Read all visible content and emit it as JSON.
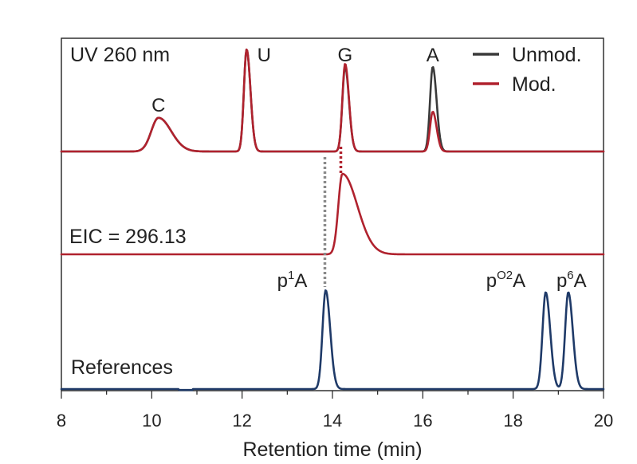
{
  "chart_data": {
    "type": "line",
    "xlabel": "Retention time (min)",
    "xlim": [
      8,
      20
    ],
    "x_ticks": [
      "8",
      "10",
      "12",
      "14",
      "16",
      "18",
      "20"
    ],
    "grid": false,
    "legend": {
      "position": "top-right",
      "entries": [
        "Unmod.",
        "Mod."
      ]
    },
    "panels": [
      {
        "label": "UV 260 nm",
        "peak_labels": [
          {
            "text": "C",
            "x": 10.15
          },
          {
            "text": "U",
            "x": 12.1
          },
          {
            "text": "G",
            "x": 14.28
          },
          {
            "text": "A",
            "x": 16.22
          }
        ],
        "series": [
          {
            "name": "Unmod.",
            "color": "#3a3a3a",
            "peaks": [
              {
                "x": 10.15,
                "height": 0.33
              },
              {
                "x": 12.1,
                "height": 1.0
              },
              {
                "x": 14.28,
                "height": 0.83
              },
              {
                "x": 16.22,
                "height": 0.83
              }
            ]
          },
          {
            "name": "Mod.",
            "color": "#b0222e",
            "peaks": [
              {
                "x": 10.15,
                "height": 0.33
              },
              {
                "x": 12.1,
                "height": 1.0
              },
              {
                "x": 14.28,
                "height": 0.86
              },
              {
                "x": 16.22,
                "height": 0.39
              }
            ]
          }
        ]
      },
      {
        "label": "EIC = 296.13",
        "series": [
          {
            "name": "Mod.",
            "color": "#b0222e",
            "peaks": [
              {
                "x": 14.22,
                "height": 1.0
              }
            ]
          }
        ]
      },
      {
        "label": "References",
        "peak_labels": [
          {
            "text": "p",
            "sup": "1",
            "tail": "A",
            "x": 13.85
          },
          {
            "text": "p",
            "sup": "O2",
            "tail": "A",
            "x": 18.72
          },
          {
            "text": "p",
            "sup": "6",
            "tail": "A",
            "x": 19.22
          }
        ],
        "series": [
          {
            "color": "#1f3a68",
            "peaks": [
              {
                "x": 13.85,
                "height": 1.0
              },
              {
                "x": 18.72,
                "height": 0.98
              },
              {
                "x": 19.22,
                "height": 0.98
              }
            ]
          }
        ]
      }
    ],
    "dotted_markers": [
      {
        "x": 13.85,
        "color": "#8a8a8a"
      },
      {
        "x": 14.15,
        "color": "#b0222e"
      }
    ]
  }
}
